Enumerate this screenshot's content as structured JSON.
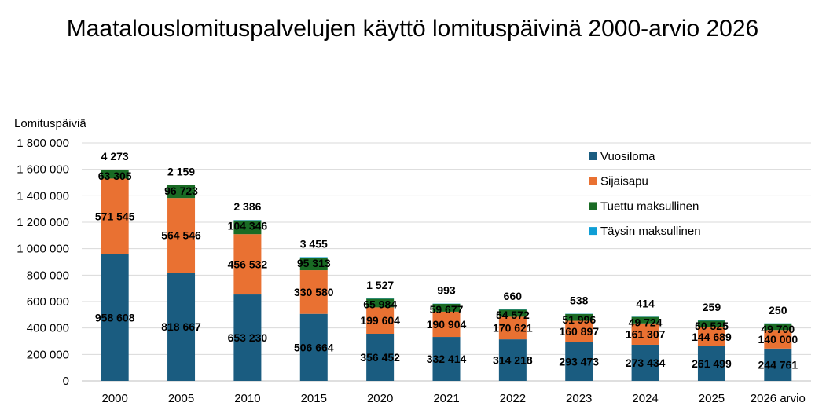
{
  "chart_data": {
    "type": "bar",
    "stacked": true,
    "title": "Maatalouslomituspalvelujen käyttö lomituspäivinä 2000-arvio 2026",
    "ylabel": "Lomituspäiviä",
    "xlabel": "",
    "ylim": [
      0,
      1800000
    ],
    "yticks": [
      0,
      200000,
      400000,
      600000,
      800000,
      1000000,
      1200000,
      1400000,
      1600000,
      1800000
    ],
    "ytick_labels": [
      "0",
      "200 000",
      "400 000",
      "600 000",
      "800 000",
      "1 000 000",
      "1 200 000",
      "1 400 000",
      "1 600 000",
      "1 800 000"
    ],
    "grid": true,
    "legend_position": "top-right",
    "categories": [
      "2000",
      "2005",
      "2010",
      "2015",
      "2020",
      "2021",
      "2022",
      "2023",
      "2024",
      "2025",
      "2026 arvio"
    ],
    "series": [
      {
        "name": "Vuosiloma",
        "color": "#1a5c80",
        "values": [
          958608,
          818667,
          653230,
          506664,
          356452,
          332414,
          314218,
          293473,
          273434,
          261499,
          244761
        ],
        "labels": [
          "958 608",
          "818 667",
          "653 230",
          "506 664",
          "356 452",
          "332 414",
          "314 218",
          "293 473",
          "273 434",
          "261 499",
          "244 761"
        ]
      },
      {
        "name": "Sijaisapu",
        "color": "#e97132",
        "values": [
          571545,
          564546,
          456532,
          330580,
          199604,
          190904,
          170621,
          160897,
          161307,
          144689,
          140000
        ],
        "labels": [
          "571 545",
          "564 546",
          "456 532",
          "330 580",
          "199 604",
          "190 904",
          "170 621",
          "160 897",
          "161 307",
          "144 689",
          "140 000"
        ]
      },
      {
        "name": "Tuettu maksullinen",
        "color": "#196b24",
        "values": [
          63305,
          96723,
          104346,
          95313,
          65984,
          59677,
          54572,
          51996,
          49724,
          50525,
          49700
        ],
        "labels": [
          "63 305",
          "96 723",
          "104 346",
          "95 313",
          "65 984",
          "59 677",
          "54 572",
          "51 996",
          "49 724",
          "50 525",
          "49 700"
        ]
      },
      {
        "name": "Täysin maksullinen",
        "color": "#0f9ed5",
        "values": [
          4273,
          2159,
          2386,
          3455,
          1527,
          993,
          660,
          538,
          414,
          259,
          250
        ],
        "labels": [
          "4 273",
          "2 159",
          "2 386",
          "3 455",
          "1 527",
          "993",
          "660",
          "538",
          "414",
          "259",
          "250"
        ]
      }
    ]
  }
}
